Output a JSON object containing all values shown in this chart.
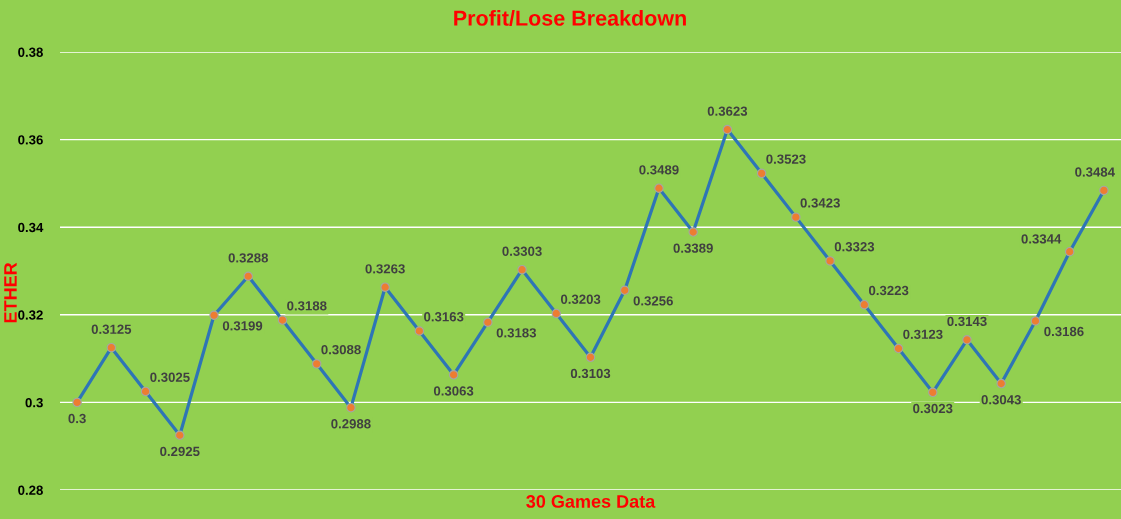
{
  "chart_data": {
    "type": "line",
    "title": "Profit/Lose Breakdown",
    "xlabel": "30 Games Data",
    "ylabel": "ETHER",
    "categories": [
      null,
      null,
      null,
      null,
      null,
      null,
      null,
      null,
      null,
      null,
      null,
      null,
      null,
      null,
      null,
      null,
      null,
      null,
      null,
      null,
      null,
      null,
      null,
      null,
      null,
      null,
      null,
      null,
      null,
      null,
      null
    ],
    "series": [
      {
        "color": "#2e75b6",
        "values": [
          0.3,
          0.3125,
          0.3025,
          0.2925,
          0.3199,
          0.3288,
          0.3188,
          0.3088,
          0.2988,
          0.3263,
          0.3163,
          0.3063,
          0.3183,
          0.3303,
          0.3203,
          0.3103,
          0.3256,
          0.3489,
          0.3389,
          0.3623,
          0.3523,
          0.3423,
          0.3323,
          0.3223,
          0.3123,
          0.3023,
          0.3143,
          0.3043,
          0.3186,
          0.3344,
          0.3484
        ]
      }
    ],
    "ylim": [
      0.28,
      0.38
    ],
    "yticks": [
      0.28,
      0.3,
      0.32,
      0.34,
      0.36,
      0.38
    ],
    "tick_labels": "y",
    "grid": "y",
    "marker": "circle",
    "line_style": "solid",
    "data_labels": true
  }
}
